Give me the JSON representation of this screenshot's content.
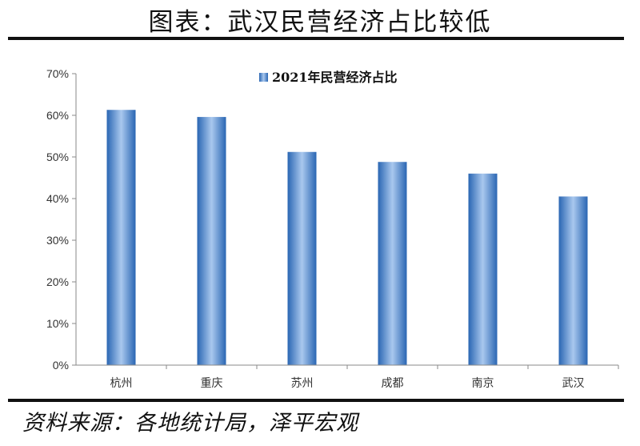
{
  "header": {
    "title": "图表：武汉民营经济占比较低"
  },
  "footer": {
    "source": "资料来源：各地统计局，泽平宏观"
  },
  "colors": {
    "bar_dark": "#2a66b3",
    "bar_light": "#a9c8ee",
    "axis": "#8a8a8a"
  },
  "chart_data": {
    "type": "bar",
    "title": "",
    "xlabel": "",
    "ylabel": "",
    "categories": [
      "杭州",
      "重庆",
      "苏州",
      "成都",
      "南京",
      "武汉"
    ],
    "series": [
      {
        "name": "2021年民营经济占比",
        "values": [
          61.3,
          59.6,
          51.2,
          48.8,
          46.0,
          40.5
        ]
      }
    ],
    "ylim": [
      0,
      70
    ],
    "yticks": [
      "0%",
      "10%",
      "20%",
      "30%",
      "40%",
      "50%",
      "60%",
      "70%"
    ],
    "grid": false,
    "legend_position": "top-center"
  }
}
